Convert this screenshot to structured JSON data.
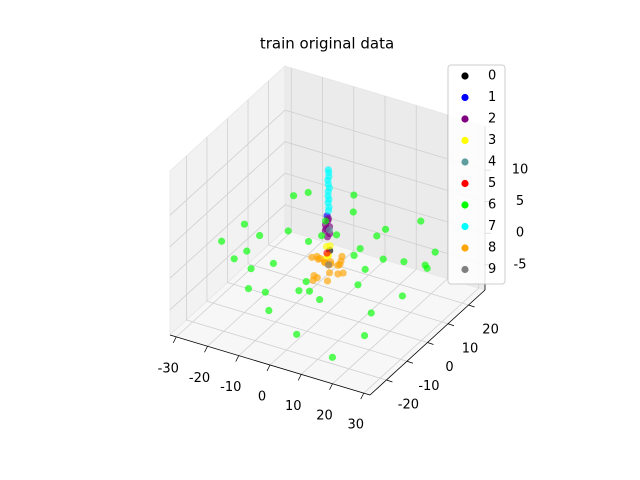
{
  "chart_data": {
    "type": "scatter3d",
    "title": "train original data",
    "xlim": [
      -32,
      32
    ],
    "ylim": [
      -28,
      28
    ],
    "zlim": [
      -9,
      17
    ],
    "xticks": [
      -30,
      -20,
      -10,
      0,
      10,
      20,
      30
    ],
    "yticks": [
      -20,
      -10,
      0,
      10,
      20
    ],
    "zticks": [
      -5,
      0,
      5,
      10
    ],
    "grid": true,
    "legend": "upper right",
    "series": [
      {
        "name": "0",
        "color": "#000000",
        "x": [
          0.5
        ],
        "y": [
          0.3
        ],
        "z": [
          0.8
        ]
      },
      {
        "name": "1",
        "color": "#0000ff",
        "x": [
          0.2
        ],
        "y": [
          -0.5
        ],
        "z": [
          6.5
        ]
      },
      {
        "name": "2",
        "color": "#800080",
        "x": [
          0,
          0.5,
          -0.5,
          0.3,
          -0.3,
          0,
          0.4,
          -0.4
        ],
        "y": [
          0,
          0.3,
          -0.3,
          0.5,
          -0.5,
          0.2,
          -0.2,
          0.1
        ],
        "z": [
          3,
          3.5,
          4,
          4.5,
          5,
          5.5,
          6,
          4.2
        ]
      },
      {
        "name": "3",
        "color": "#ffff00",
        "x": [
          0,
          1,
          -1,
          0.5,
          -0.5
        ],
        "y": [
          0,
          -1,
          1,
          0.5,
          -0.5
        ],
        "z": [
          0,
          0.5,
          1,
          1.5,
          -0.5
        ]
      },
      {
        "name": "4",
        "color": "#5f9ea0",
        "x": [
          0
        ],
        "y": [
          1
        ],
        "z": [
          3.8
        ]
      },
      {
        "name": "5",
        "color": "#ff0000",
        "x": [
          -0.5
        ],
        "y": [
          0.5
        ],
        "z": [
          0.2
        ]
      },
      {
        "name": "6",
        "color": "#00ff00",
        "x": [
          -25,
          -20,
          -15,
          -10,
          -5,
          5,
          10,
          15,
          20,
          25,
          -22,
          -18,
          -12,
          -8,
          -3,
          3,
          8,
          12,
          18,
          22,
          -24,
          -16,
          -6,
          6,
          16,
          24,
          -14,
          -4,
          4,
          14,
          -20,
          -10,
          0,
          10,
          20,
          -26,
          26,
          -2,
          2,
          0
        ],
        "y": [
          5,
          -15,
          20,
          -22,
          12,
          -18,
          22,
          -8,
          15,
          -20,
          -5,
          18,
          -12,
          25,
          -24,
          8,
          -16,
          10,
          -25,
          3,
          20,
          -2,
          -10,
          18,
          -6,
          12,
          -18,
          22,
          -20,
          0,
          -10,
          6,
          -15,
          -24,
          22,
          -12,
          8,
          16,
          -4,
          24
        ],
        "z": [
          -2,
          1,
          -5,
          3,
          -1,
          2,
          -6,
          0,
          4,
          -3,
          -7,
          2,
          -4,
          1,
          -2,
          5,
          -1,
          3,
          -6,
          -4,
          0,
          -3,
          6,
          -5,
          2,
          -2,
          4,
          -6,
          1,
          -7,
          5,
          -1,
          -8,
          3,
          -3,
          2,
          0,
          -5,
          7,
          -4
        ]
      },
      {
        "name": "7",
        "color": "#00ffff",
        "x": [
          0,
          0.2,
          -0.2,
          0.1,
          0,
          -0.1,
          0.2,
          0,
          -0.2,
          0.1,
          0,
          0
        ],
        "y": [
          0.5,
          0.4,
          0.6,
          0.5,
          0.3,
          0.5,
          0.6,
          0.4,
          0.5,
          0.5,
          0.6,
          0.4
        ],
        "z": [
          7,
          7.6,
          8.2,
          8.8,
          9.4,
          10,
          10.6,
          11.2,
          11.8,
          12.4,
          13,
          13.5
        ]
      },
      {
        "name": "8",
        "color": "#ffa500",
        "x": [
          -3,
          -2,
          -1,
          0,
          1,
          2,
          3,
          -4,
          4,
          -2,
          2,
          0,
          -1,
          1,
          -3,
          3,
          0,
          -5,
          5,
          0
        ],
        "y": [
          0,
          2,
          -2,
          1,
          -1,
          3,
          -3,
          1,
          -1,
          -4,
          4,
          0,
          3,
          -3,
          -2,
          2,
          -5,
          0,
          0,
          5
        ],
        "z": [
          -1,
          -2,
          0,
          -3,
          -1,
          -2,
          0,
          -1,
          -2,
          -3,
          -1,
          -4,
          -2,
          0,
          -3,
          -1,
          -2,
          -1,
          -2,
          -3
        ]
      },
      {
        "name": "9",
        "color": "#808080",
        "x": [
          1
        ],
        "y": [
          -1
        ],
        "z": [
          -1
        ]
      }
    ]
  }
}
